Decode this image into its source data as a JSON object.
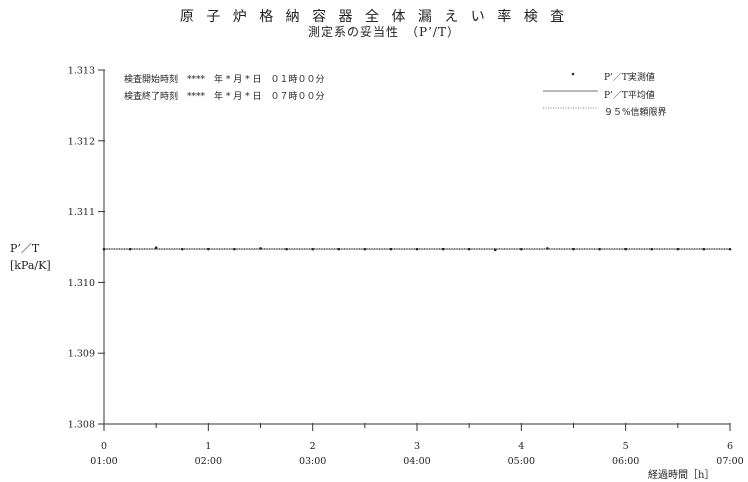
{
  "title": "原 子 炉 格 納 容 器 全 体 漏 え い 率 検 査",
  "subtitle": "測定系の妥当性　（P’/T）",
  "info": {
    "start": "検査開始時刻　****　年 * 月 * 日　０１時００分",
    "end": "検査終了時刻　****　年 * 月 * 日　０７時００分"
  },
  "legend": {
    "measured": "P’／T実測値",
    "average": "P’／T平均値",
    "confidence": "９５%信頼限界"
  },
  "ylabel": {
    "line1": "P’／T",
    "line2": "[kPa/K]"
  },
  "xunit": "経過時間［h］",
  "chart_data": {
    "type": "scatter",
    "title": "測定系の妥当性　（P’/T）",
    "xlabel": "経過時間［h］",
    "ylabel": "P’／T [kPa/K]",
    "xlim": [
      0,
      6
    ],
    "ylim": [
      1.308,
      1.313
    ],
    "x_ticks": [
      0,
      1,
      2,
      3,
      4,
      5,
      6
    ],
    "x_tick_times": [
      "01:00",
      "02:00",
      "03:00",
      "04:00",
      "05:00",
      "06:00",
      "07:00"
    ],
    "y_ticks": [
      "1.308",
      "1.309",
      "1.310",
      "1.311",
      "1.312",
      "1.313"
    ],
    "legend_position": "top-right",
    "grid": false,
    "series": [
      {
        "name": "P’／T実測値",
        "kind": "points",
        "x": [
          0,
          0.25,
          0.5,
          0.75,
          1,
          1.25,
          1.5,
          1.75,
          2,
          2.25,
          2.5,
          2.75,
          3,
          3.25,
          3.5,
          3.75,
          4,
          4.25,
          4.5,
          4.75,
          5,
          5.25,
          5.5,
          5.75,
          6
        ],
        "y": [
          1.31047,
          1.31047,
          1.31049,
          1.31047,
          1.31047,
          1.31047,
          1.31048,
          1.31047,
          1.31047,
          1.31047,
          1.31047,
          1.31047,
          1.31047,
          1.31047,
          1.31047,
          1.31046,
          1.31047,
          1.31048,
          1.31047,
          1.31047,
          1.31047,
          1.31047,
          1.31047,
          1.31047,
          1.31047
        ]
      },
      {
        "name": "P’／T平均値",
        "kind": "line",
        "x": [
          0,
          6
        ],
        "y": [
          1.31047,
          1.31047
        ]
      },
      {
        "name": "９５%信頼限界",
        "kind": "dotted",
        "x": [
          0,
          6
        ],
        "y": [
          1.31048,
          1.31048
        ]
      }
    ]
  }
}
